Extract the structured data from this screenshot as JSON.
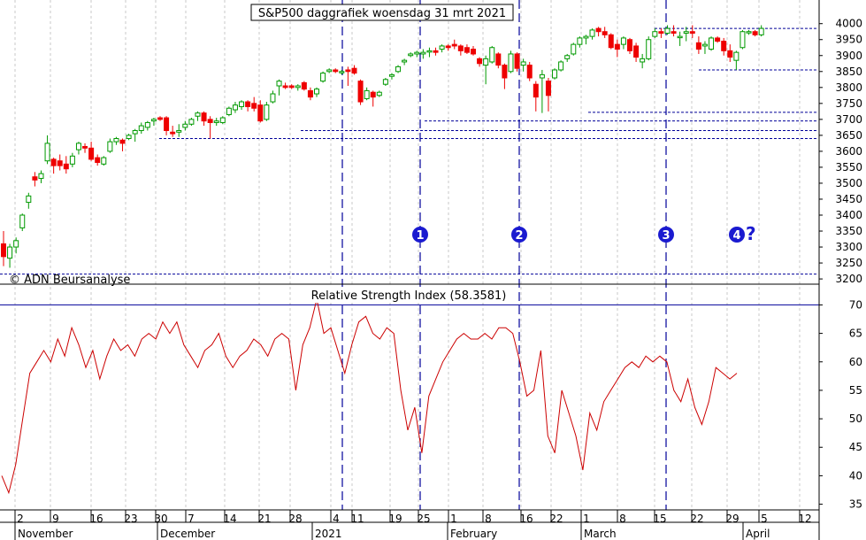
{
  "chart_data": [
    {
      "type": "candlestick",
      "title": "S&P500 daggrafiek woensdag 31 mrt 2021",
      "copyright": "© ADN Beursanalyse",
      "y_ticks": [
        3200,
        3250,
        3300,
        3350,
        3400,
        3450,
        3500,
        3550,
        3600,
        3650,
        3700,
        3750,
        3800,
        3850,
        3900,
        3950,
        4000
      ],
      "ylim": [
        3185,
        4020
      ],
      "grid": true,
      "support_levels": [
        3215,
        3640,
        3665,
        3695,
        3722,
        3855,
        3985
      ],
      "markers": [
        {
          "label": "1",
          "day": 57
        },
        {
          "label": "2",
          "day": 72
        },
        {
          "label": "3",
          "day": 110
        },
        {
          "label": "4",
          "day": 128,
          "suffix": "?"
        }
      ],
      "candles": [
        {
          "day": 0,
          "o": 3310,
          "h": 3350,
          "l": 3240,
          "c": 3270
        },
        {
          "day": 1,
          "o": 3265,
          "h": 3310,
          "l": 3235,
          "c": 3300
        },
        {
          "day": 2,
          "o": 3300,
          "h": 3330,
          "l": 3280,
          "c": 3320
        },
        {
          "day": 3,
          "o": 3360,
          "h": 3405,
          "l": 3350,
          "c": 3400
        },
        {
          "day": 4,
          "o": 3440,
          "h": 3470,
          "l": 3420,
          "c": 3460
        },
        {
          "day": 5,
          "o": 3520,
          "h": 3535,
          "l": 3490,
          "c": 3510
        },
        {
          "day": 6,
          "o": 3515,
          "h": 3540,
          "l": 3500,
          "c": 3530
        },
        {
          "day": 7,
          "o": 3570,
          "h": 3650,
          "l": 3560,
          "c": 3625
        },
        {
          "day": 8,
          "o": 3575,
          "h": 3580,
          "l": 3530,
          "c": 3555
        },
        {
          "day": 9,
          "o": 3570,
          "h": 3590,
          "l": 3540,
          "c": 3555
        },
        {
          "day": 10,
          "o": 3560,
          "h": 3585,
          "l": 3530,
          "c": 3545
        },
        {
          "day": 11,
          "o": 3560,
          "h": 3595,
          "l": 3550,
          "c": 3585
        },
        {
          "day": 12,
          "o": 3605,
          "h": 3630,
          "l": 3590,
          "c": 3625
        },
        {
          "day": 13,
          "o": 3615,
          "h": 3625,
          "l": 3595,
          "c": 3610
        },
        {
          "day": 14,
          "o": 3610,
          "h": 3630,
          "l": 3570,
          "c": 3575
        },
        {
          "day": 15,
          "o": 3580,
          "h": 3590,
          "l": 3555,
          "c": 3565
        },
        {
          "day": 16,
          "o": 3560,
          "h": 3585,
          "l": 3555,
          "c": 3580
        },
        {
          "day": 17,
          "o": 3600,
          "h": 3640,
          "l": 3595,
          "c": 3630
        },
        {
          "day": 18,
          "o": 3630,
          "h": 3645,
          "l": 3620,
          "c": 3640
        },
        {
          "day": 19,
          "o": 3635,
          "h": 3640,
          "l": 3600,
          "c": 3625
        },
        {
          "day": 20,
          "o": 3640,
          "h": 3655,
          "l": 3635,
          "c": 3650
        },
        {
          "day": 21,
          "o": 3655,
          "h": 3670,
          "l": 3630,
          "c": 3665
        },
        {
          "day": 22,
          "o": 3665,
          "h": 3690,
          "l": 3655,
          "c": 3680
        },
        {
          "day": 23,
          "o": 3675,
          "h": 3695,
          "l": 3665,
          "c": 3690
        },
        {
          "day": 24,
          "o": 3695,
          "h": 3705,
          "l": 3680,
          "c": 3700
        },
        {
          "day": 25,
          "o": 3705,
          "h": 3710,
          "l": 3695,
          "c": 3700
        },
        {
          "day": 26,
          "o": 3705,
          "h": 3710,
          "l": 3650,
          "c": 3665
        },
        {
          "day": 27,
          "o": 3660,
          "h": 3680,
          "l": 3645,
          "c": 3655
        },
        {
          "day": 28,
          "o": 3660,
          "h": 3685,
          "l": 3645,
          "c": 3665
        },
        {
          "day": 29,
          "o": 3675,
          "h": 3695,
          "l": 3665,
          "c": 3685
        },
        {
          "day": 30,
          "o": 3685,
          "h": 3705,
          "l": 3680,
          "c": 3700
        },
        {
          "day": 31,
          "o": 3710,
          "h": 3725,
          "l": 3695,
          "c": 3720
        },
        {
          "day": 32,
          "o": 3720,
          "h": 3725,
          "l": 3680,
          "c": 3695
        },
        {
          "day": 33,
          "o": 3700,
          "h": 3710,
          "l": 3640,
          "c": 3690
        },
        {
          "day": 34,
          "o": 3690,
          "h": 3705,
          "l": 3680,
          "c": 3695
        },
        {
          "day": 35,
          "o": 3690,
          "h": 3710,
          "l": 3685,
          "c": 3705
        },
        {
          "day": 36,
          "o": 3715,
          "h": 3740,
          "l": 3710,
          "c": 3735
        },
        {
          "day": 37,
          "o": 3730,
          "h": 3755,
          "l": 3720,
          "c": 3745
        },
        {
          "day": 38,
          "o": 3740,
          "h": 3760,
          "l": 3730,
          "c": 3755
        },
        {
          "day": 39,
          "o": 3755,
          "h": 3760,
          "l": 3725,
          "c": 3740
        },
        {
          "day": 40,
          "o": 3750,
          "h": 3770,
          "l": 3725,
          "c": 3735
        },
        {
          "day": 41,
          "o": 3745,
          "h": 3760,
          "l": 3690,
          "c": 3695
        },
        {
          "day": 42,
          "o": 3700,
          "h": 3755,
          "l": 3695,
          "c": 3745
        },
        {
          "day": 43,
          "o": 3755,
          "h": 3790,
          "l": 3750,
          "c": 3780
        },
        {
          "day": 44,
          "o": 3805,
          "h": 3825,
          "l": 3775,
          "c": 3820
        },
        {
          "day": 45,
          "o": 3805,
          "h": 3815,
          "l": 3795,
          "c": 3800
        },
        {
          "day": 46,
          "o": 3805,
          "h": 3810,
          "l": 3795,
          "c": 3800
        },
        {
          "day": 47,
          "o": 3800,
          "h": 3810,
          "l": 3790,
          "c": 3805
        },
        {
          "day": 48,
          "o": 3815,
          "h": 3820,
          "l": 3790,
          "c": 3795
        },
        {
          "day": 49,
          "o": 3790,
          "h": 3800,
          "l": 3760,
          "c": 3770
        },
        {
          "day": 50,
          "o": 3780,
          "h": 3800,
          "l": 3770,
          "c": 3795
        },
        {
          "day": 51,
          "o": 3820,
          "h": 3850,
          "l": 3815,
          "c": 3845
        },
        {
          "day": 52,
          "o": 3850,
          "h": 3860,
          "l": 3845,
          "c": 3855
        },
        {
          "day": 53,
          "o": 3855,
          "h": 3860,
          "l": 3845,
          "c": 3850
        },
        {
          "day": 54,
          "o": 3850,
          "h": 3855,
          "l": 3840,
          "c": 3850
        },
        {
          "day": 55,
          "o": 3855,
          "h": 3865,
          "l": 3805,
          "c": 3850
        },
        {
          "day": 56,
          "o": 3860,
          "h": 3870,
          "l": 3840,
          "c": 3845
        },
        {
          "day": 57,
          "o": 3820,
          "h": 3825,
          "l": 3745,
          "c": 3755
        },
        {
          "day": 58,
          "o": 3765,
          "h": 3800,
          "l": 3760,
          "c": 3790
        },
        {
          "day": 59,
          "o": 3785,
          "h": 3790,
          "l": 3740,
          "c": 3770
        },
        {
          "day": 60,
          "o": 3775,
          "h": 3790,
          "l": 3770,
          "c": 3785
        },
        {
          "day": 61,
          "o": 3810,
          "h": 3830,
          "l": 3805,
          "c": 3825
        },
        {
          "day": 62,
          "o": 3835,
          "h": 3845,
          "l": 3825,
          "c": 3840
        },
        {
          "day": 63,
          "o": 3850,
          "h": 3870,
          "l": 3845,
          "c": 3865
        },
        {
          "day": 64,
          "o": 3880,
          "h": 3890,
          "l": 3870,
          "c": 3885
        },
        {
          "day": 65,
          "o": 3900,
          "h": 3910,
          "l": 3895,
          "c": 3905
        },
        {
          "day": 66,
          "o": 3905,
          "h": 3915,
          "l": 3895,
          "c": 3910
        },
        {
          "day": 67,
          "o": 3905,
          "h": 3920,
          "l": 3890,
          "c": 3910
        },
        {
          "day": 68,
          "o": 3915,
          "h": 3925,
          "l": 3895,
          "c": 3915
        },
        {
          "day": 69,
          "o": 3915,
          "h": 3925,
          "l": 3900,
          "c": 3910
        },
        {
          "day": 70,
          "o": 3920,
          "h": 3935,
          "l": 3910,
          "c": 3930
        },
        {
          "day": 71,
          "o": 3930,
          "h": 3935,
          "l": 3915,
          "c": 3925
        },
        {
          "day": 72,
          "o": 3935,
          "h": 3950,
          "l": 3920,
          "c": 3930
        },
        {
          "day": 73,
          "o": 3930,
          "h": 3935,
          "l": 3900,
          "c": 3915
        },
        {
          "day": 74,
          "o": 3925,
          "h": 3935,
          "l": 3905,
          "c": 3910
        },
        {
          "day": 75,
          "o": 3920,
          "h": 3930,
          "l": 3900,
          "c": 3905
        },
        {
          "day": 76,
          "o": 3890,
          "h": 3895,
          "l": 3865,
          "c": 3875
        },
        {
          "day": 77,
          "o": 3870,
          "h": 3900,
          "l": 3810,
          "c": 3890
        },
        {
          "day": 78,
          "o": 3880,
          "h": 3930,
          "l": 3875,
          "c": 3925
        },
        {
          "day": 79,
          "o": 3905,
          "h": 3910,
          "l": 3860,
          "c": 3870
        },
        {
          "day": 80,
          "o": 3870,
          "h": 3875,
          "l": 3795,
          "c": 3830
        },
        {
          "day": 81,
          "o": 3850,
          "h": 3915,
          "l": 3845,
          "c": 3905
        },
        {
          "day": 82,
          "o": 3905,
          "h": 3910,
          "l": 3850,
          "c": 3860
        },
        {
          "day": 83,
          "o": 3870,
          "h": 3890,
          "l": 3850,
          "c": 3880
        },
        {
          "day": 84,
          "o": 3870,
          "h": 3880,
          "l": 3820,
          "c": 3830
        },
        {
          "day": 85,
          "o": 3810,
          "h": 3820,
          "l": 3725,
          "c": 3770
        },
        {
          "day": 86,
          "o": 3830,
          "h": 3855,
          "l": 3720,
          "c": 3840
        },
        {
          "day": 87,
          "o": 3820,
          "h": 3830,
          "l": 3725,
          "c": 3775
        },
        {
          "day": 88,
          "o": 3830,
          "h": 3860,
          "l": 3825,
          "c": 3855
        },
        {
          "day": 89,
          "o": 3855,
          "h": 3885,
          "l": 3850,
          "c": 3880
        },
        {
          "day": 90,
          "o": 3890,
          "h": 3905,
          "l": 3880,
          "c": 3900
        },
        {
          "day": 91,
          "o": 3905,
          "h": 3940,
          "l": 3900,
          "c": 3935
        },
        {
          "day": 92,
          "o": 3935,
          "h": 3960,
          "l": 3925,
          "c": 3955
        },
        {
          "day": 93,
          "o": 3955,
          "h": 3965,
          "l": 3935,
          "c": 3960
        },
        {
          "day": 94,
          "o": 3960,
          "h": 3985,
          "l": 3950,
          "c": 3980
        },
        {
          "day": 95,
          "o": 3985,
          "h": 3990,
          "l": 3960,
          "c": 3975
        },
        {
          "day": 96,
          "o": 3975,
          "h": 3990,
          "l": 3955,
          "c": 3965
        },
        {
          "day": 97,
          "o": 3965,
          "h": 3970,
          "l": 3920,
          "c": 3925
        },
        {
          "day": 98,
          "o": 3935,
          "h": 3950,
          "l": 3895,
          "c": 3920
        },
        {
          "day": 99,
          "o": 3935,
          "h": 3960,
          "l": 3920,
          "c": 3955
        },
        {
          "day": 100,
          "o": 3950,
          "h": 3955,
          "l": 3905,
          "c": 3915
        },
        {
          "day": 101,
          "o": 3930,
          "h": 3940,
          "l": 3880,
          "c": 3895
        },
        {
          "day": 102,
          "o": 3880,
          "h": 3905,
          "l": 3860,
          "c": 3890
        },
        {
          "day": 103,
          "o": 3890,
          "h": 3960,
          "l": 3885,
          "c": 3950
        },
        {
          "day": 104,
          "o": 3960,
          "h": 3985,
          "l": 3955,
          "c": 3975
        },
        {
          "day": 105,
          "o": 3975,
          "h": 3985,
          "l": 3955,
          "c": 3970
        },
        {
          "day": 106,
          "o": 3970,
          "h": 3995,
          "l": 3965,
          "c": 3985
        },
        {
          "day": 107,
          "o": 3975,
          "h": 3995,
          "l": 3960,
          "c": 3970
        },
        {
          "day": 108,
          "o": 3960,
          "h": 3975,
          "l": 3930,
          "c": 3960
        },
        {
          "day": 109,
          "o": 3970,
          "h": 3990,
          "l": 3945,
          "c": 3975
        },
        {
          "day": 110,
          "o": 3975,
          "h": 3995,
          "l": 3955,
          "c": 3970
        },
        {
          "day": 111,
          "o": 3940,
          "h": 3960,
          "l": 3905,
          "c": 3920
        },
        {
          "day": 112,
          "o": 3930,
          "h": 3945,
          "l": 3905,
          "c": 3935
        },
        {
          "day": 113,
          "o": 3920,
          "h": 3960,
          "l": 3915,
          "c": 3955
        },
        {
          "day": 114,
          "o": 3955,
          "h": 3960,
          "l": 3940,
          "c": 3945
        },
        {
          "day": 115,
          "o": 3945,
          "h": 3955,
          "l": 3900,
          "c": 3915
        },
        {
          "day": 116,
          "o": 3915,
          "h": 3935,
          "l": 3880,
          "c": 3895
        },
        {
          "day": 117,
          "o": 3885,
          "h": 3915,
          "l": 3855,
          "c": 3910
        },
        {
          "day": 118,
          "o": 3925,
          "h": 3980,
          "l": 3920,
          "c": 3975
        },
        {
          "day": 119,
          "o": 3975,
          "h": 3980,
          "l": 3965,
          "c": 3975
        },
        {
          "day": 120,
          "o": 3975,
          "h": 3980,
          "l": 3960,
          "c": 3965
        },
        {
          "day": 121,
          "o": 3965,
          "h": 3995,
          "l": 3960,
          "c": 3985
        }
      ]
    },
    {
      "type": "line",
      "title": "Relative Strength Index (58.3581)",
      "y_ticks": [
        35,
        40,
        45,
        50,
        55,
        60,
        65,
        70
      ],
      "ylim": [
        34,
        71
      ],
      "reference_level": 70,
      "series": [
        {
          "values": [
            40,
            37,
            42,
            50,
            58,
            60,
            62,
            60,
            64,
            61,
            66,
            63,
            59,
            62,
            57,
            61,
            64,
            62,
            63,
            61,
            64,
            65,
            64,
            67,
            65,
            67,
            63,
            61,
            59,
            62,
            63,
            65,
            61,
            59,
            61,
            62,
            64,
            63,
            61,
            64,
            65,
            64,
            55,
            63,
            66,
            71,
            65,
            66,
            62,
            58,
            63,
            67,
            68,
            65,
            64,
            66,
            65,
            55,
            48,
            52,
            44,
            54,
            57,
            60,
            62,
            64,
            65,
            64,
            64,
            65,
            64,
            66,
            66,
            65,
            60,
            54,
            55,
            62,
            47,
            44,
            55,
            51,
            47,
            41,
            51,
            48,
            53,
            55,
            57,
            59,
            60,
            59,
            61,
            60,
            61,
            60,
            55,
            53,
            57,
            52,
            49,
            53,
            59,
            58,
            57,
            58
          ]
        }
      ]
    }
  ],
  "x_axis": {
    "days": [
      "2",
      "9",
      "16",
      "23",
      "30",
      "7",
      "14",
      "21",
      "28",
      "4",
      "11",
      "19",
      "25",
      "1",
      "8",
      "16",
      "22",
      "1",
      "8",
      "15",
      "22",
      "29",
      "5",
      "12"
    ],
    "months": [
      "November",
      "December",
      "2021",
      "February",
      "March",
      "April"
    ]
  },
  "colors": {
    "up": "#009900",
    "down": "#ee0000",
    "rsi_line": "#cc0000",
    "grid": "#c8c8c8",
    "levels": "#000099",
    "marker": "#1a1ad0"
  }
}
